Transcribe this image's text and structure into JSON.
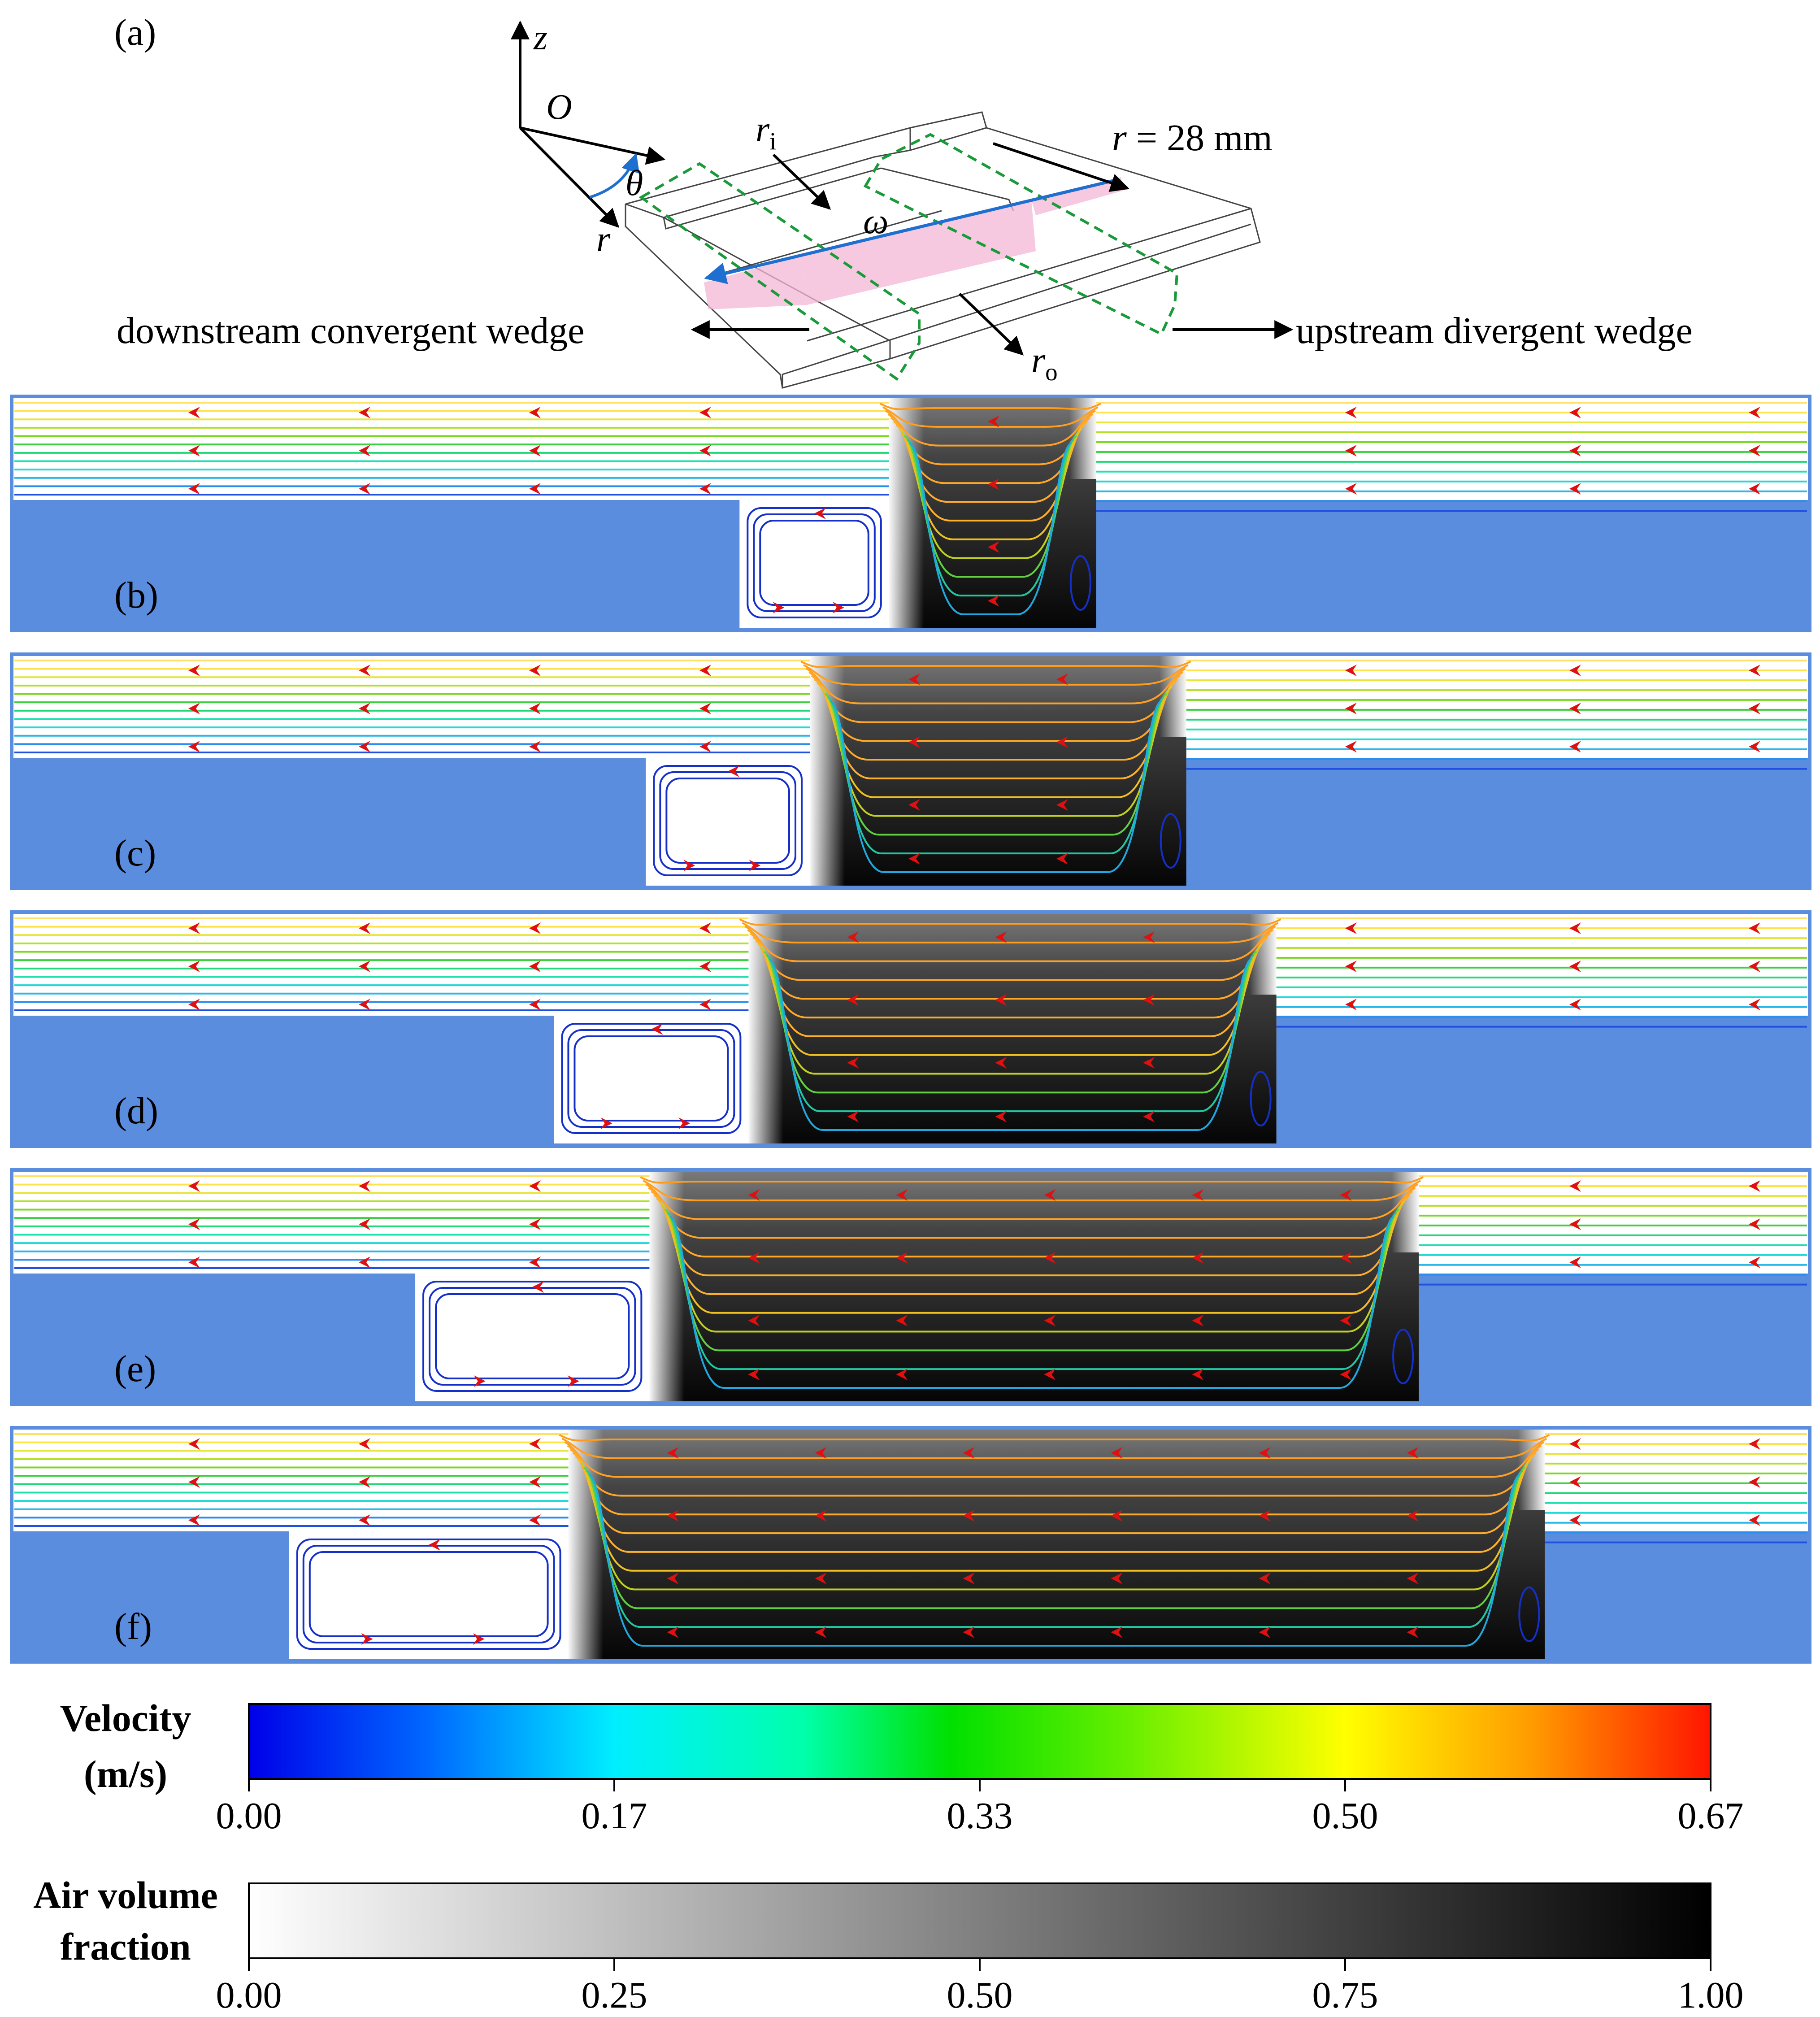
{
  "schematic": {
    "label": "(a)",
    "axis_z": "z",
    "origin": "O",
    "axis_theta": "θ",
    "axis_r": "r",
    "r_inner_main": "r",
    "r_inner_sub": "i",
    "r_outer_main": "r",
    "r_outer_sub": "o",
    "omega": "ω",
    "radius_label_var": "r",
    "radius_label_value": " = 28 mm",
    "left_annotation": "downstream convergent wedge",
    "right_annotation": "upstream divergent wedge"
  },
  "panels": [
    {
      "label": "(b)",
      "cavity_start": 0.405,
      "cavity_end": 0.488,
      "bubble_end": 0.603
    },
    {
      "label": "(c)",
      "cavity_start": 0.353,
      "cavity_end": 0.444,
      "bubble_end": 0.653
    },
    {
      "label": "(d)",
      "cavity_start": 0.302,
      "cavity_end": 0.41,
      "bubble_end": 0.703
    },
    {
      "label": "(e)",
      "cavity_start": 0.225,
      "cavity_end": 0.355,
      "bubble_end": 0.782
    },
    {
      "label": "(f)",
      "cavity_start": 0.155,
      "cavity_end": 0.31,
      "bubble_end": 0.852
    }
  ],
  "colors": {
    "solid": "#5b8ddf",
    "arrow": "#e01010",
    "vortex": "#1530c8"
  },
  "velocity_bar": {
    "title_line1": "Velocity",
    "title_line2": "(m/s)",
    "ticks": [
      "0.00",
      "0.17",
      "0.33",
      "0.50",
      "0.67"
    ],
    "colormap": "jet"
  },
  "air_bar": {
    "title_line1": "Air volume",
    "title_line2": "fraction",
    "ticks": [
      "0.00",
      "0.25",
      "0.50",
      "0.75",
      "1.00"
    ],
    "colormap": "white-to-black"
  }
}
